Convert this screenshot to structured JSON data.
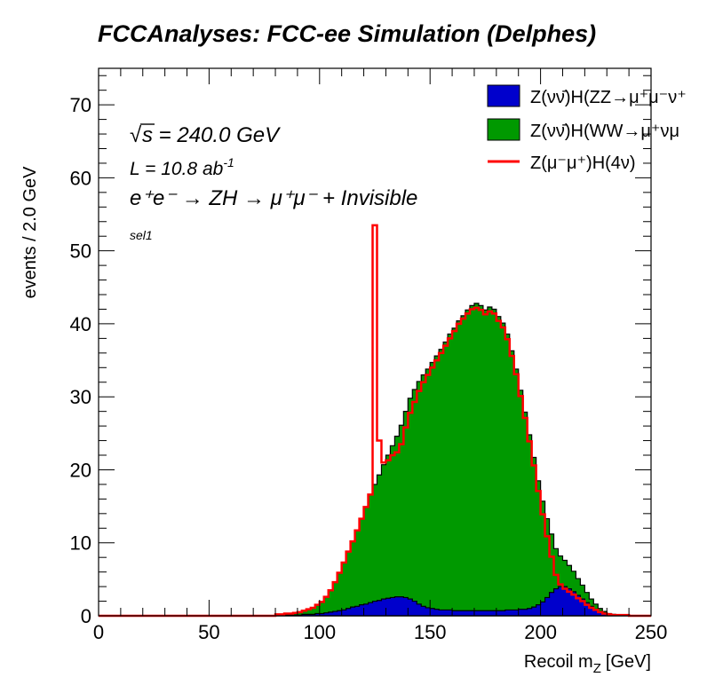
{
  "chart_data": {
    "type": "histogram",
    "title": "FCCAnalyses: FCC-ee Simulation (Delphes)",
    "xlabel": "Recoil m",
    "xlabel_sub": "Z",
    "xlabel_unit": "[GeV]",
    "ylabel": "events / 2.0 GeV",
    "xlim": [
      0,
      250
    ],
    "ylim": [
      0,
      75
    ],
    "bin_width": 2.0,
    "grid": false,
    "legend_position": "top-right",
    "x_ticks": [
      0,
      50,
      100,
      150,
      200,
      250
    ],
    "y_ticks": [
      0,
      10,
      20,
      30,
      40,
      50,
      60,
      70
    ],
    "annotations": {
      "sqrt_s": "s = 240.0 GeV",
      "sqrt_sym": "√",
      "lumi_prefix": "L = 10.8 ab",
      "lumi_sup": "-1",
      "process": "e⁺e⁻ → ZH → μ⁺μ⁻ + Invisible",
      "selection": "sel1"
    },
    "series": [
      {
        "name": "Z(νν̄)H(ZZ→μ⁺μ⁻ν⁺",
        "color": "#0000cc",
        "style": "filled",
        "x_start": 80,
        "values": [
          0.1,
          0.1,
          0.1,
          0.1,
          0.1,
          0.1,
          0.2,
          0.2,
          0.2,
          0.3,
          0.3,
          0.4,
          0.5,
          0.6,
          0.7,
          0.8,
          1.0,
          1.2,
          1.3,
          1.5,
          1.6,
          1.8,
          2.0,
          2.1,
          2.3,
          2.4,
          2.5,
          2.6,
          2.6,
          2.5,
          2.3,
          2.0,
          1.6,
          1.3,
          1.1,
          1.0,
          0.9,
          0.8,
          0.8,
          0.8,
          0.7,
          0.7,
          0.7,
          0.7,
          0.7,
          0.7,
          0.7,
          0.7,
          0.7,
          0.7,
          0.7,
          0.7,
          0.8,
          0.8,
          0.8,
          0.9,
          0.9,
          1.0,
          1.2,
          1.5,
          1.9,
          2.5,
          3.2,
          3.7,
          4.0,
          4.0,
          3.7,
          3.3,
          2.8,
          2.3,
          1.8,
          1.3,
          0.9,
          0.6,
          0.4,
          0.2,
          0.1,
          0.1,
          0.0,
          0.0
        ]
      },
      {
        "name": "Z(νν̄)H(WW→μ⁺νμ",
        "color": "#009900",
        "style": "filled",
        "x_start": 80,
        "values": [
          0.1,
          0.1,
          0.2,
          0.2,
          0.3,
          0.4,
          0.5,
          0.7,
          0.9,
          1.2,
          1.6,
          2.2,
          3.0,
          4.0,
          5.2,
          6.5,
          7.8,
          9.0,
          10.4,
          11.8,
          13.3,
          14.8,
          16.0,
          17.2,
          18.4,
          19.6,
          20.8,
          22.0,
          23.5,
          25.5,
          27.5,
          29.0,
          30.5,
          31.7,
          32.7,
          33.7,
          34.7,
          35.7,
          36.7,
          37.8,
          38.7,
          39.7,
          40.4,
          41.2,
          41.8,
          42.1,
          41.8,
          41.2,
          41.6,
          41.3,
          40.3,
          39.4,
          37.8,
          35.5,
          33.0,
          30.0,
          27.0,
          23.8,
          20.5,
          17.0,
          13.8,
          10.8,
          8.0,
          5.5,
          4.2,
          3.6,
          3.2,
          2.8,
          2.3,
          1.9,
          1.4,
          1.0,
          0.7,
          0.4,
          0.2,
          0.1,
          0.1,
          0.0,
          0.0,
          0.0
        ]
      },
      {
        "name": "Z(μ⁻μ⁺)H(4ν)",
        "color": "#ff0000",
        "style": "line",
        "x_start": 80,
        "values": [
          0.2,
          0.2,
          0.3,
          0.3,
          0.4,
          0.5,
          0.7,
          0.9,
          1.1,
          1.5,
          1.9,
          2.6,
          3.5,
          4.6,
          5.9,
          7.3,
          8.8,
          10.2,
          11.7,
          13.3,
          14.9,
          16.6,
          53.5,
          24.0,
          21.0,
          21.3,
          22.0,
          22.4,
          23.5,
          25.8,
          27.8,
          29.3,
          30.8,
          32.0,
          33.0,
          34.0,
          35.0,
          36.0,
          37.0,
          38.0,
          39.0,
          40.0,
          40.7,
          41.4,
          42.0,
          42.2,
          41.9,
          41.3,
          41.7,
          41.4,
          40.4,
          39.5,
          37.9,
          35.6,
          33.1,
          30.1,
          27.1,
          23.9,
          20.6,
          17.1,
          13.9,
          10.9,
          8.1,
          5.6,
          4.3,
          3.7,
          3.3,
          2.9,
          2.4,
          2.0,
          1.5,
          1.1,
          0.8,
          0.5,
          0.3,
          0.2,
          0.1,
          0.1,
          0.1,
          0.1
        ]
      }
    ]
  }
}
